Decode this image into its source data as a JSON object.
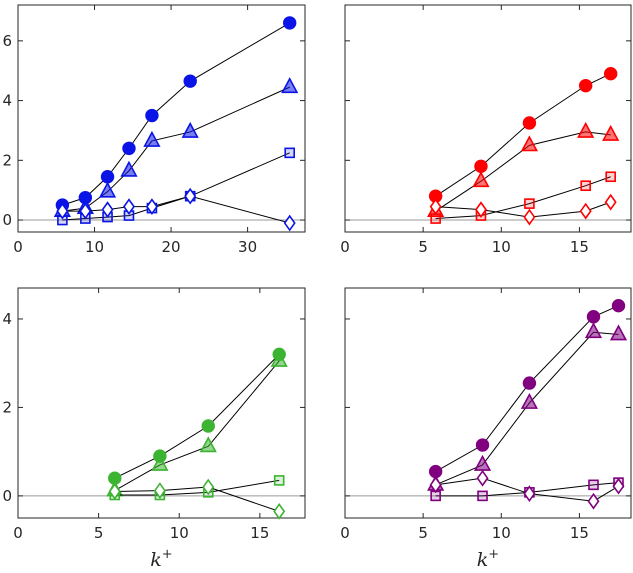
{
  "chart_data": [
    {
      "type": "line",
      "panel": "top-left",
      "color": "#0a14e6",
      "fill": "#0a14e6",
      "xlim": [
        0,
        37.5
      ],
      "ylim": [
        -0.4,
        7.2
      ],
      "xticks": [
        0,
        10,
        20,
        30
      ],
      "yticks": [
        0,
        2,
        4,
        6
      ],
      "xtick_labels": [
        "0",
        "10",
        "20",
        "30"
      ],
      "ytick_labels": [
        "0",
        "2",
        "4",
        "6"
      ],
      "xlabel": "",
      "series": [
        {
          "name": "circle",
          "marker": "circle",
          "x": [
            5.8,
            8.8,
            11.7,
            14.5,
            17.5,
            22.5,
            35.5
          ],
          "y": [
            0.5,
            0.75,
            1.45,
            2.4,
            3.5,
            4.65,
            6.6
          ]
        },
        {
          "name": "triangle",
          "marker": "triangle",
          "x": [
            5.8,
            8.8,
            11.7,
            14.5,
            17.5,
            22.5,
            35.5
          ],
          "y": [
            0.3,
            0.4,
            0.95,
            1.65,
            2.65,
            2.95,
            4.45
          ]
        },
        {
          "name": "square",
          "marker": "square",
          "x": [
            5.8,
            8.8,
            11.7,
            14.5,
            17.5,
            22.5,
            35.5
          ],
          "y": [
            0.0,
            0.05,
            0.1,
            0.15,
            0.4,
            0.8,
            2.25
          ]
        },
        {
          "name": "diamond",
          "marker": "diamond",
          "x": [
            5.8,
            8.8,
            11.7,
            14.5,
            17.5,
            22.5,
            35.5
          ],
          "y": [
            0.3,
            0.3,
            0.35,
            0.45,
            0.45,
            0.8,
            -0.1
          ]
        }
      ]
    },
    {
      "type": "line",
      "panel": "top-right",
      "color": "#ff0000",
      "fill": "#ff0000",
      "xlim": [
        0,
        18.3
      ],
      "ylim": [
        -0.4,
        7.2
      ],
      "xticks": [
        0,
        5,
        10,
        15
      ],
      "yticks": [
        0,
        2,
        4,
        6
      ],
      "xtick_labels": [
        "0",
        "5",
        "10",
        "15"
      ],
      "ytick_labels": [],
      "xlabel": "",
      "series": [
        {
          "name": "circle",
          "marker": "circle",
          "x": [
            5.8,
            8.7,
            11.8,
            15.4,
            17.0
          ],
          "y": [
            0.8,
            1.8,
            3.25,
            4.5,
            4.9
          ]
        },
        {
          "name": "triangle",
          "marker": "triangle",
          "x": [
            5.8,
            8.7,
            11.8,
            15.4,
            17.0
          ],
          "y": [
            0.3,
            1.3,
            2.5,
            2.95,
            2.85
          ]
        },
        {
          "name": "square",
          "marker": "square",
          "x": [
            5.8,
            8.7,
            11.8,
            15.4,
            17.0
          ],
          "y": [
            0.05,
            0.15,
            0.55,
            1.15,
            1.45
          ]
        },
        {
          "name": "diamond",
          "marker": "diamond",
          "x": [
            5.8,
            8.7,
            11.8,
            15.4,
            17.0
          ],
          "y": [
            0.45,
            0.35,
            0.1,
            0.3,
            0.6
          ]
        }
      ]
    },
    {
      "type": "line",
      "panel": "bottom-left",
      "color": "#3cb432",
      "fill": "#3cb432",
      "xlim": [
        0,
        17.8
      ],
      "ylim": [
        -0.5,
        4.7
      ],
      "xticks": [
        0,
        5,
        10,
        15
      ],
      "yticks": [
        0,
        2,
        4
      ],
      "xtick_labels": [
        "0",
        "5",
        "10",
        "15"
      ],
      "ytick_labels": [
        "0",
        "2",
        "4"
      ],
      "xlabel": "k+",
      "series": [
        {
          "name": "circle",
          "marker": "circle",
          "x": [
            6.0,
            8.8,
            11.8,
            16.2
          ],
          "y": [
            0.4,
            0.9,
            1.58,
            3.2
          ]
        },
        {
          "name": "triangle",
          "marker": "triangle",
          "x": [
            6.0,
            8.8,
            11.8,
            16.2
          ],
          "y": [
            0.12,
            0.7,
            1.12,
            3.05
          ]
        },
        {
          "name": "square",
          "marker": "square",
          "x": [
            6.0,
            8.8,
            11.8,
            16.2
          ],
          "y": [
            0.02,
            0.02,
            0.08,
            0.35
          ]
        },
        {
          "name": "diamond",
          "marker": "diamond",
          "x": [
            6.0,
            8.8,
            11.8,
            16.2
          ],
          "y": [
            0.1,
            0.12,
            0.2,
            -0.35
          ]
        }
      ]
    },
    {
      "type": "line",
      "panel": "bottom-right",
      "color": "#7f007f",
      "fill": "#800080",
      "xlim": [
        0,
        18.3
      ],
      "ylim": [
        -0.5,
        4.7
      ],
      "xticks": [
        0,
        5,
        10,
        15
      ],
      "yticks": [
        0,
        2,
        4
      ],
      "xtick_labels": [
        "0",
        "5",
        "10",
        "15"
      ],
      "ytick_labels": [],
      "xlabel": "k+",
      "series": [
        {
          "name": "circle",
          "marker": "circle",
          "x": [
            5.8,
            8.8,
            11.8,
            15.9,
            17.5
          ],
          "y": [
            0.55,
            1.15,
            2.55,
            4.05,
            4.3
          ]
        },
        {
          "name": "triangle",
          "marker": "triangle",
          "x": [
            5.8,
            8.8,
            11.8,
            15.9,
            17.5
          ],
          "y": [
            0.25,
            0.7,
            2.1,
            3.7,
            3.65
          ]
        },
        {
          "name": "square",
          "marker": "square",
          "x": [
            5.8,
            8.8,
            11.8,
            15.9,
            17.5
          ],
          "y": [
            0.0,
            0.0,
            0.08,
            0.25,
            0.3
          ]
        },
        {
          "name": "diamond",
          "marker": "diamond",
          "x": [
            5.8,
            8.8,
            11.8,
            15.9,
            17.5
          ],
          "y": [
            0.25,
            0.4,
            0.05,
            -0.12,
            0.22
          ]
        }
      ]
    }
  ]
}
